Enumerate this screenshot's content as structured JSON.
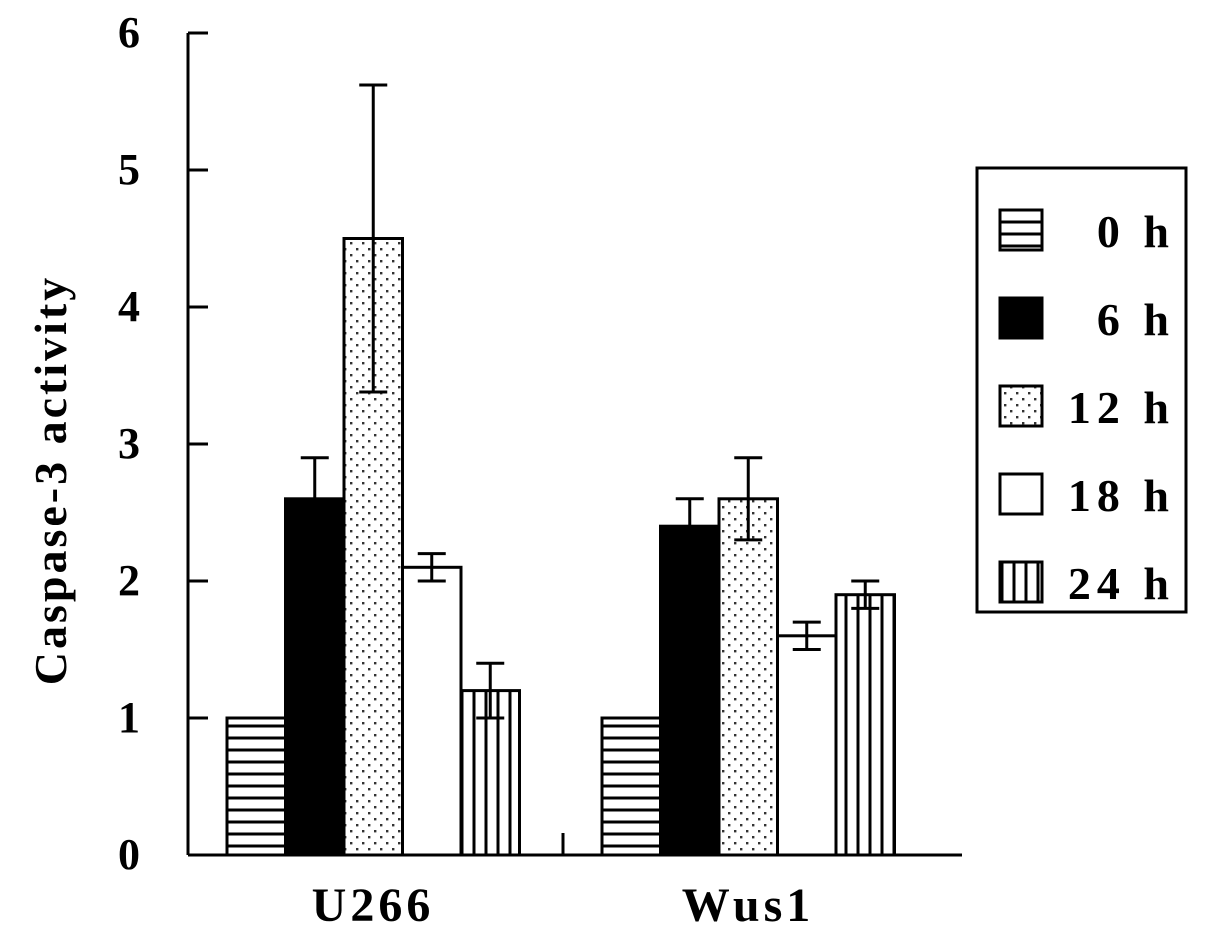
{
  "chart_data": {
    "type": "bar",
    "title": "",
    "xlabel": "",
    "ylabel": "Caspase-3 activity",
    "ylim": [
      0,
      6
    ],
    "yticks": [
      "0",
      "1",
      "2",
      "3",
      "4",
      "5",
      "6"
    ],
    "categories": [
      "U266",
      "Wus1"
    ],
    "series": [
      {
        "name": "0 h",
        "pattern": "horizontal-stripes",
        "values": [
          1.0,
          1.0
        ],
        "errors": [
          0,
          0
        ]
      },
      {
        "name": "6 h",
        "pattern": "solid-black",
        "values": [
          2.6,
          2.4
        ],
        "errors": [
          0.3,
          0.2
        ]
      },
      {
        "name": "12 h",
        "pattern": "dots",
        "values": [
          4.5,
          2.6
        ],
        "errors": [
          1.12,
          0.3
        ]
      },
      {
        "name": "18 h",
        "pattern": "white",
        "values": [
          2.1,
          1.6
        ],
        "errors": [
          0.1,
          0.1
        ]
      },
      {
        "name": "24 h",
        "pattern": "vertical-stripes",
        "values": [
          1.2,
          1.9
        ],
        "errors": [
          0.2,
          0.1
        ]
      }
    ],
    "grid": false,
    "legend_position": "right"
  },
  "colors": {
    "ink": "#000000",
    "background": "#ffffff"
  }
}
